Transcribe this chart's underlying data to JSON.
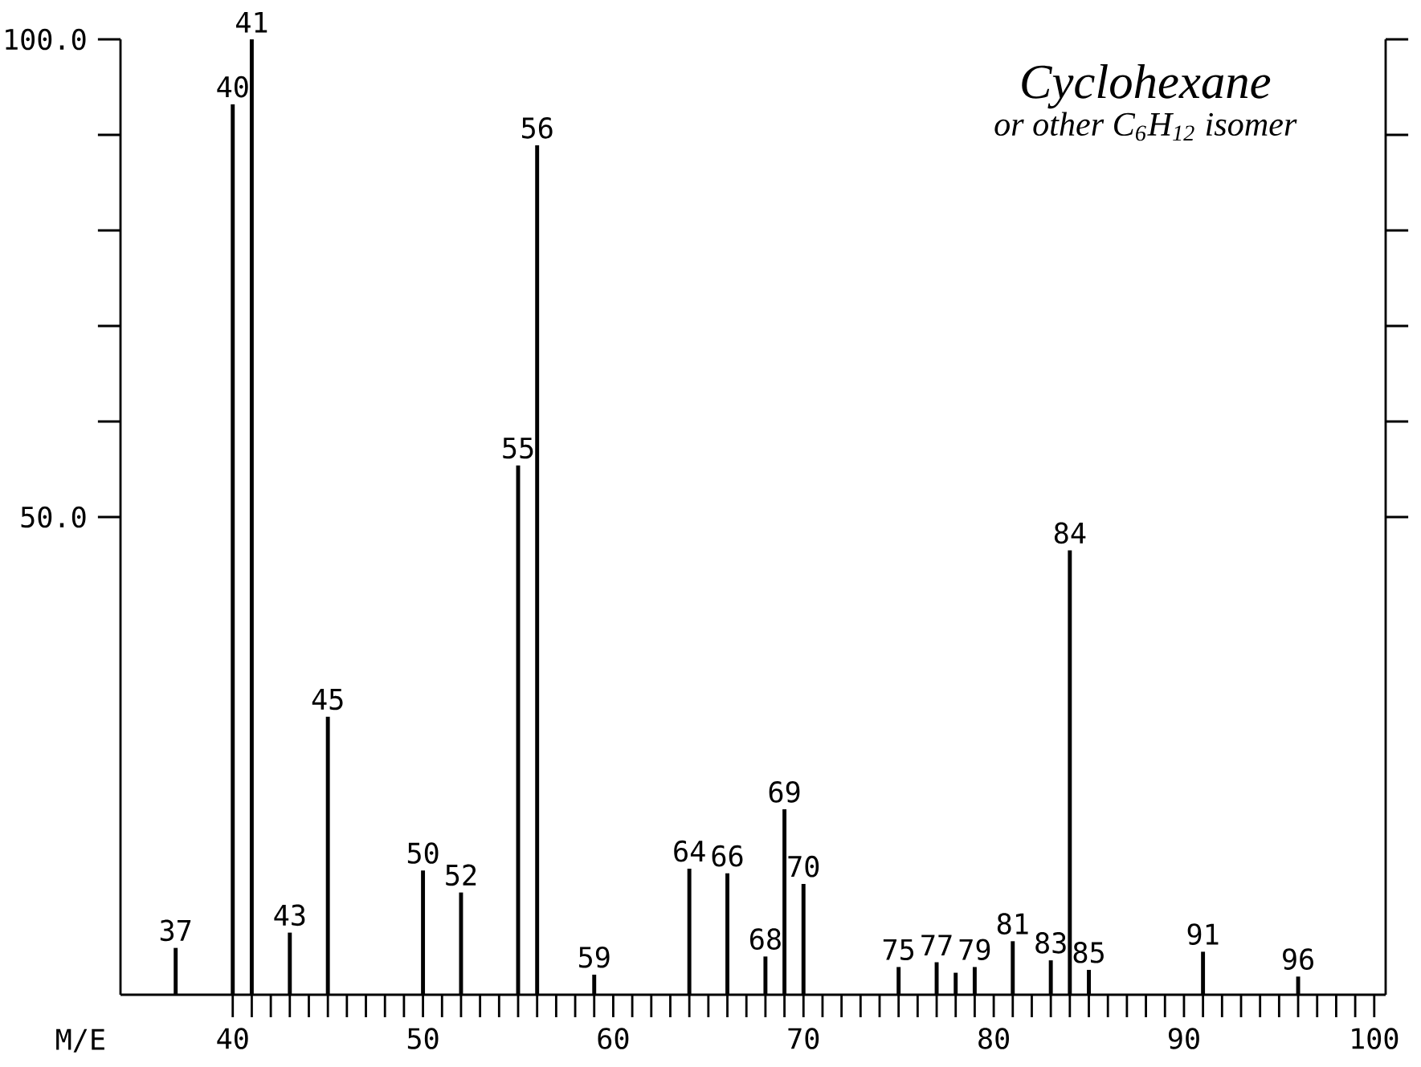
{
  "chart_data": {
    "type": "bar",
    "xlabel": "M/E",
    "color": "#000000",
    "x": [
      37,
      40,
      41,
      43,
      45,
      50,
      52,
      55,
      56,
      59,
      64,
      66,
      68,
      69,
      70,
      75,
      77,
      78,
      79,
      81,
      83,
      84,
      85,
      91,
      96
    ],
    "values": [
      4.9,
      93.2,
      100,
      6.5,
      29.1,
      13.0,
      10.7,
      55.4,
      88.9,
      2.1,
      13.2,
      12.7,
      4.0,
      19.4,
      11.6,
      2.9,
      3.4,
      2.3,
      2.9,
      5.6,
      3.6,
      46.5,
      2.6,
      4.5,
      1.9
    ],
    "xlim": [
      34.1,
      100.6
    ],
    "xticks": [
      40,
      50,
      60,
      70,
      80,
      90,
      100
    ],
    "ylim": [
      0,
      100
    ],
    "yticks": [
      {
        "value": 50,
        "label": "50.0"
      },
      {
        "value": 100,
        "label": "100.0"
      }
    ],
    "annotations": [
      {
        "text": "37",
        "x": 37,
        "y": 4.9
      },
      {
        "text": "40",
        "x": 40,
        "y": 93.2
      },
      {
        "text": "41",
        "x": 41,
        "y": 100
      },
      {
        "text": "43",
        "x": 43,
        "y": 6.5
      },
      {
        "text": "45",
        "x": 45,
        "y": 29.1
      },
      {
        "text": "50",
        "x": 50,
        "y": 13.0
      },
      {
        "text": "52",
        "x": 52,
        "y": 10.7
      },
      {
        "text": "55",
        "x": 55,
        "y": 55.4
      },
      {
        "text": "56",
        "x": 56,
        "y": 88.9
      },
      {
        "text": "59",
        "x": 59,
        "y": 2.1
      },
      {
        "text": "64",
        "x": 64,
        "y": 13.2
      },
      {
        "text": "66",
        "x": 66,
        "y": 12.7
      },
      {
        "text": "68",
        "x": 68,
        "y": 4.0
      },
      {
        "text": "69",
        "x": 69,
        "y": 19.4
      },
      {
        "text": "70",
        "x": 70,
        "y": 11.6
      },
      {
        "text": "75",
        "x": 75,
        "y": 2.9
      },
      {
        "text": "77",
        "x": 77,
        "y": 3.4
      },
      {
        "text": "79",
        "x": 79,
        "y": 2.9
      },
      {
        "text": "81",
        "x": 81,
        "y": 5.6
      },
      {
        "text": "83",
        "x": 83,
        "y": 3.6
      },
      {
        "text": "84",
        "x": 84,
        "y": 46.5
      },
      {
        "text": "85",
        "x": 85,
        "y": 2.6
      },
      {
        "text": "91",
        "x": 91,
        "y": 4.5
      },
      {
        "text": "96",
        "x": 96,
        "y": 1.9
      },
      "Cyclohexane",
      "or other C$_{6}$H$_{12}$ isomer"
    ]
  }
}
